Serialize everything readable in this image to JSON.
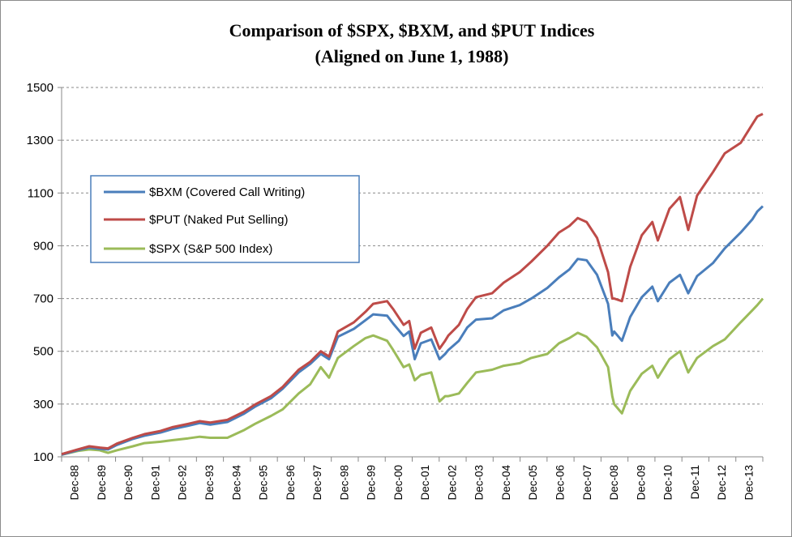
{
  "chart_data": {
    "type": "line",
    "title_line1": "Comparison of $SPX, $BXM, and $PUT Indices",
    "title_line2": "(Aligned on June 1, 1988)",
    "ylim": [
      100,
      1500
    ],
    "yticks": [
      100,
      300,
      500,
      700,
      900,
      1100,
      1300,
      1500
    ],
    "xlabels": [
      "Dec-88",
      "Dec-89",
      "Dec-90",
      "Dec-91",
      "Dec-92",
      "Dec-93",
      "Dec-94",
      "Dec-95",
      "Dec-96",
      "Dec-97",
      "Dec-98",
      "Dec-99",
      "Dec-00",
      "Dec-01",
      "Dec-02",
      "Dec-03",
      "Dec-04",
      "Dec-05",
      "Dec-06",
      "Dec-07",
      "Dec-08",
      "Dec-09",
      "Dec-10",
      "Dec-11",
      "Dec-12",
      "Dec-13"
    ],
    "x_range": [
      1988.92,
      2014.3
    ],
    "grid": "horizontal",
    "legend_position": "upper-left",
    "series": [
      {
        "name": "$BXM (Covered Call Writing)",
        "color": "#4a7ebb",
        "points": [
          [
            1988.92,
            108
          ],
          [
            1989.5,
            125
          ],
          [
            1989.92,
            135
          ],
          [
            1990.3,
            130
          ],
          [
            1990.6,
            128
          ],
          [
            1990.92,
            145
          ],
          [
            1991.5,
            168
          ],
          [
            1991.92,
            180
          ],
          [
            1992.5,
            192
          ],
          [
            1992.92,
            205
          ],
          [
            1993.5,
            218
          ],
          [
            1993.92,
            228
          ],
          [
            1994.3,
            222
          ],
          [
            1994.92,
            232
          ],
          [
            1995.5,
            262
          ],
          [
            1995.92,
            290
          ],
          [
            1996.5,
            322
          ],
          [
            1996.92,
            358
          ],
          [
            1997.5,
            420
          ],
          [
            1997.92,
            452
          ],
          [
            1998.3,
            490
          ],
          [
            1998.6,
            470
          ],
          [
            1998.92,
            555
          ],
          [
            1999.5,
            585
          ],
          [
            1999.92,
            618
          ],
          [
            2000.2,
            640
          ],
          [
            2000.7,
            635
          ],
          [
            2000.92,
            605
          ],
          [
            2001.3,
            558
          ],
          [
            2001.5,
            575
          ],
          [
            2001.7,
            470
          ],
          [
            2001.92,
            530
          ],
          [
            2002.3,
            545
          ],
          [
            2002.6,
            470
          ],
          [
            2002.8,
            490
          ],
          [
            2002.92,
            505
          ],
          [
            2003.3,
            540
          ],
          [
            2003.6,
            590
          ],
          [
            2003.92,
            620
          ],
          [
            2004.5,
            625
          ],
          [
            2004.92,
            655
          ],
          [
            2005.5,
            675
          ],
          [
            2005.92,
            700
          ],
          [
            2006.5,
            740
          ],
          [
            2006.92,
            780
          ],
          [
            2007.3,
            810
          ],
          [
            2007.6,
            850
          ],
          [
            2007.92,
            845
          ],
          [
            2008.3,
            790
          ],
          [
            2008.7,
            680
          ],
          [
            2008.85,
            560
          ],
          [
            2008.92,
            575
          ],
          [
            2009.2,
            540
          ],
          [
            2009.5,
            630
          ],
          [
            2009.92,
            705
          ],
          [
            2010.3,
            745
          ],
          [
            2010.5,
            690
          ],
          [
            2010.92,
            760
          ],
          [
            2011.3,
            790
          ],
          [
            2011.6,
            720
          ],
          [
            2011.92,
            785
          ],
          [
            2012.5,
            835
          ],
          [
            2012.92,
            890
          ],
          [
            2013.5,
            950
          ],
          [
            2013.92,
            1000
          ],
          [
            2014.1,
            1030
          ],
          [
            2014.3,
            1050
          ]
        ]
      },
      {
        "name": "$PUT (Naked Put Selling)",
        "color": "#be4b48",
        "points": [
          [
            1988.92,
            110
          ],
          [
            1989.5,
            128
          ],
          [
            1989.92,
            140
          ],
          [
            1990.3,
            135
          ],
          [
            1990.6,
            132
          ],
          [
            1990.92,
            150
          ],
          [
            1991.5,
            172
          ],
          [
            1991.92,
            186
          ],
          [
            1992.5,
            198
          ],
          [
            1992.92,
            212
          ],
          [
            1993.5,
            225
          ],
          [
            1993.92,
            235
          ],
          [
            1994.3,
            230
          ],
          [
            1994.92,
            240
          ],
          [
            1995.5,
            270
          ],
          [
            1995.92,
            298
          ],
          [
            1996.5,
            330
          ],
          [
            1996.92,
            365
          ],
          [
            1997.5,
            430
          ],
          [
            1997.92,
            460
          ],
          [
            1998.3,
            500
          ],
          [
            1998.6,
            480
          ],
          [
            1998.92,
            575
          ],
          [
            1999.5,
            610
          ],
          [
            1999.92,
            650
          ],
          [
            2000.2,
            680
          ],
          [
            2000.7,
            690
          ],
          [
            2000.92,
            660
          ],
          [
            2001.3,
            600
          ],
          [
            2001.5,
            615
          ],
          [
            2001.7,
            510
          ],
          [
            2001.92,
            570
          ],
          [
            2002.3,
            590
          ],
          [
            2002.6,
            510
          ],
          [
            2002.8,
            540
          ],
          [
            2002.92,
            560
          ],
          [
            2003.3,
            600
          ],
          [
            2003.6,
            660
          ],
          [
            2003.92,
            705
          ],
          [
            2004.5,
            720
          ],
          [
            2004.92,
            760
          ],
          [
            2005.5,
            800
          ],
          [
            2005.92,
            840
          ],
          [
            2006.5,
            900
          ],
          [
            2006.92,
            950
          ],
          [
            2007.3,
            975
          ],
          [
            2007.6,
            1005
          ],
          [
            2007.92,
            990
          ],
          [
            2008.3,
            930
          ],
          [
            2008.7,
            800
          ],
          [
            2008.85,
            700
          ],
          [
            2008.92,
            700
          ],
          [
            2009.2,
            690
          ],
          [
            2009.5,
            820
          ],
          [
            2009.92,
            940
          ],
          [
            2010.3,
            990
          ],
          [
            2010.5,
            920
          ],
          [
            2010.92,
            1040
          ],
          [
            2011.3,
            1085
          ],
          [
            2011.6,
            960
          ],
          [
            2011.92,
            1090
          ],
          [
            2012.5,
            1180
          ],
          [
            2012.92,
            1250
          ],
          [
            2013.5,
            1290
          ],
          [
            2013.92,
            1360
          ],
          [
            2014.1,
            1390
          ],
          [
            2014.3,
            1400
          ]
        ]
      },
      {
        "name": "$SPX (S&P 500 Index)",
        "color": "#9bbb59",
        "points": [
          [
            1988.92,
            108
          ],
          [
            1989.5,
            122
          ],
          [
            1989.92,
            128
          ],
          [
            1990.3,
            125
          ],
          [
            1990.6,
            115
          ],
          [
            1990.92,
            125
          ],
          [
            1991.5,
            140
          ],
          [
            1991.92,
            152
          ],
          [
            1992.5,
            157
          ],
          [
            1992.92,
            163
          ],
          [
            1993.5,
            170
          ],
          [
            1993.92,
            176
          ],
          [
            1994.3,
            172
          ],
          [
            1994.92,
            172
          ],
          [
            1995.5,
            200
          ],
          [
            1995.92,
            225
          ],
          [
            1996.5,
            255
          ],
          [
            1996.92,
            280
          ],
          [
            1997.5,
            340
          ],
          [
            1997.92,
            375
          ],
          [
            1998.3,
            440
          ],
          [
            1998.6,
            400
          ],
          [
            1998.92,
            475
          ],
          [
            1999.5,
            520
          ],
          [
            1999.92,
            550
          ],
          [
            2000.2,
            560
          ],
          [
            2000.7,
            540
          ],
          [
            2000.92,
            505
          ],
          [
            2001.3,
            440
          ],
          [
            2001.5,
            450
          ],
          [
            2001.7,
            390
          ],
          [
            2001.92,
            410
          ],
          [
            2002.3,
            420
          ],
          [
            2002.6,
            310
          ],
          [
            2002.8,
            330
          ],
          [
            2002.92,
            330
          ],
          [
            2003.3,
            340
          ],
          [
            2003.6,
            380
          ],
          [
            2003.92,
            420
          ],
          [
            2004.5,
            430
          ],
          [
            2004.92,
            445
          ],
          [
            2005.5,
            455
          ],
          [
            2005.92,
            475
          ],
          [
            2006.5,
            490
          ],
          [
            2006.92,
            530
          ],
          [
            2007.3,
            550
          ],
          [
            2007.6,
            570
          ],
          [
            2007.92,
            555
          ],
          [
            2008.3,
            515
          ],
          [
            2008.7,
            440
          ],
          [
            2008.85,
            330
          ],
          [
            2008.92,
            300
          ],
          [
            2009.2,
            265
          ],
          [
            2009.5,
            350
          ],
          [
            2009.92,
            415
          ],
          [
            2010.3,
            445
          ],
          [
            2010.5,
            400
          ],
          [
            2010.92,
            470
          ],
          [
            2011.3,
            500
          ],
          [
            2011.6,
            420
          ],
          [
            2011.92,
            475
          ],
          [
            2012.5,
            520
          ],
          [
            2012.92,
            545
          ],
          [
            2013.5,
            610
          ],
          [
            2013.92,
            655
          ],
          [
            2014.1,
            675
          ],
          [
            2014.3,
            700
          ]
        ]
      }
    ]
  }
}
